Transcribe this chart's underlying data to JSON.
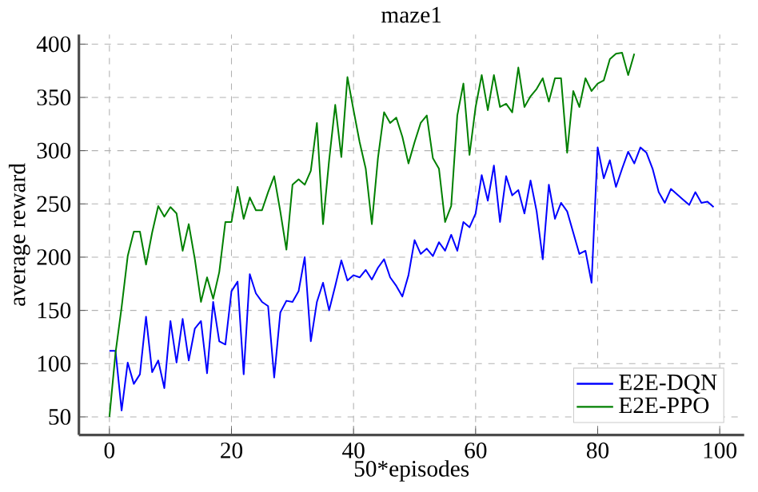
{
  "chart_data": {
    "type": "line",
    "title": "maze1",
    "xlabel": "50*episodes",
    "ylabel": "average reward",
    "x": [
      0,
      1,
      2,
      3,
      4,
      5,
      6,
      7,
      8,
      9,
      10,
      11,
      12,
      13,
      14,
      15,
      16,
      17,
      18,
      19,
      20,
      21,
      22,
      23,
      24,
      25,
      26,
      27,
      28,
      29,
      30,
      31,
      32,
      33,
      34,
      35,
      36,
      37,
      38,
      39,
      40,
      41,
      42,
      43,
      44,
      45,
      46,
      47,
      48,
      49,
      50,
      51,
      52,
      53,
      54,
      55,
      56,
      57,
      58,
      59,
      60,
      61,
      62,
      63,
      64,
      65,
      66,
      67,
      68,
      69,
      70,
      71,
      72,
      73,
      74,
      75,
      76,
      77,
      78,
      79,
      80,
      81,
      82,
      83,
      84,
      85,
      86,
      87,
      88,
      89,
      90,
      91,
      92,
      93,
      94,
      95,
      96,
      97,
      98,
      99
    ],
    "series": [
      {
        "name": "E2E-DQN",
        "color": "#0000ff",
        "values": [
          112,
          112,
          56,
          101,
          81,
          90,
          144,
          92,
          103,
          77,
          140,
          101,
          142,
          103,
          133,
          140,
          91,
          158,
          121,
          118,
          168,
          177,
          90,
          184,
          166,
          158,
          154,
          87,
          148,
          159,
          158,
          168,
          200,
          121,
          158,
          176,
          150,
          173,
          197,
          178,
          183,
          181,
          188,
          179,
          190,
          198,
          181,
          173,
          163,
          183,
          216,
          203,
          208,
          201,
          214,
          206,
          221,
          206,
          233,
          228,
          241,
          277,
          253,
          286,
          233,
          276,
          258,
          263,
          241,
          272,
          243,
          198,
          268,
          236,
          251,
          243,
          223,
          203,
          206,
          176,
          303,
          274,
          291,
          266,
          283,
          299,
          288,
          303,
          298,
          283,
          261,
          251,
          264,
          259,
          254,
          249,
          261,
          251,
          252,
          247
        ]
      },
      {
        "name": "E2E-PPO",
        "color": "#008000",
        "values": [
          50,
          110,
          153,
          201,
          224,
          224,
          193,
          223,
          248,
          238,
          247,
          241,
          206,
          231,
          198,
          158,
          181,
          161,
          186,
          233,
          233,
          266,
          236,
          256,
          244,
          244,
          261,
          276,
          243,
          207,
          268,
          273,
          268,
          281,
          326,
          231,
          291,
          343,
          294,
          369,
          338,
          308,
          283,
          231,
          293,
          336,
          326,
          331,
          313,
          288,
          308,
          326,
          333,
          293,
          283,
          233,
          248,
          333,
          363,
          296,
          341,
          371,
          338,
          371,
          341,
          344,
          336,
          378,
          341,
          351,
          358,
          368,
          346,
          368,
          368,
          298,
          356,
          341,
          368,
          356,
          363,
          366,
          386,
          391,
          392,
          371,
          391,
          null,
          null,
          null,
          null,
          null,
          null,
          null,
          null,
          null,
          null,
          null,
          null,
          null
        ]
      }
    ],
    "xlim": [
      -5,
      104
    ],
    "ylim": [
      33,
      409
    ],
    "xticks": [
      0,
      20,
      40,
      60,
      80,
      100
    ],
    "yticks": [
      50,
      100,
      150,
      200,
      250,
      300,
      350,
      400
    ],
    "grid": true,
    "legend": "bottom right"
  }
}
